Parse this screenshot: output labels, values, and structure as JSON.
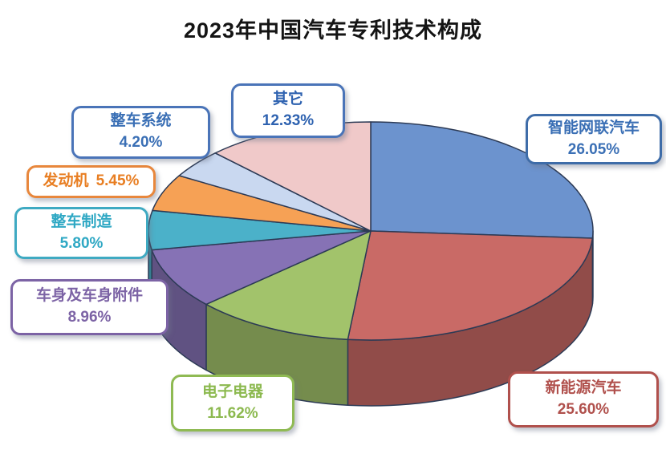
{
  "title": "2023年中国汽车专利技术构成",
  "chart_data": {
    "type": "pie",
    "title": "2023年中国汽车专利技术构成",
    "style": "3d",
    "start_angle": "12-oclock",
    "direction": "clockwise",
    "legend_position": "callout-boxes-around-pie",
    "categories": [
      "智能网联汽车",
      "新能源汽车",
      "电子电器",
      "车身及车身附件",
      "整车制造",
      "发动机",
      "整车系统",
      "其它"
    ],
    "values": [
      26.05,
      25.6,
      11.62,
      8.96,
      5.8,
      5.45,
      4.2,
      12.33
    ],
    "percent_labels": [
      "26.05%",
      "25.60%",
      "11.62%",
      "8.96%",
      "5.80%",
      "5.45%",
      "4.20%",
      "12.33%"
    ],
    "colors": [
      "#6C93CE",
      "#C96A66",
      "#A2C36B",
      "#8672B5",
      "#4BB1C9",
      "#F6A155",
      "#C9D8F0",
      "#F0C9C9"
    ],
    "outline_color": "#2C3A55"
  },
  "slices": [
    {
      "label": "智能网联汽车",
      "pct": "26.05%",
      "value": 26.05,
      "color": "#6C93CE",
      "border_color": "#3E6CA8",
      "text_color": "#3A6FB5"
    },
    {
      "label": "新能源汽车",
      "pct": "25.60%",
      "value": 25.6,
      "color": "#C96A66",
      "border_color": "#B0504C",
      "text_color": "#B0504C"
    },
    {
      "label": "电子电器",
      "pct": "11.62%",
      "value": 11.62,
      "color": "#A2C36B",
      "border_color": "#8FBA53",
      "text_color": "#8CB94F"
    },
    {
      "label": "车身及车身附件",
      "pct": "8.96%",
      "value": 8.96,
      "color": "#8672B5",
      "border_color": "#7C63A5",
      "text_color": "#7C63A5"
    },
    {
      "label": "整车制造",
      "pct": "5.80%",
      "value": 5.8,
      "color": "#4BB1C9",
      "border_color": "#3FAAC2",
      "text_color": "#2FA8C4"
    },
    {
      "label": "发动机",
      "pct": "5.45%",
      "value": 5.45,
      "color": "#F6A155",
      "border_color": "#E8873C",
      "text_color": "#E87E22"
    },
    {
      "label": "整车系统",
      "pct": "4.20%",
      "value": 4.2,
      "color": "#C9D8F0",
      "border_color": "#4A74B8",
      "text_color": "#3A6FB5"
    },
    {
      "label": "其它",
      "pct": "12.33%",
      "value": 12.33,
      "color": "#F0C9C9",
      "border_color": "#4A74B8",
      "text_color": "#2E62B0"
    }
  ]
}
